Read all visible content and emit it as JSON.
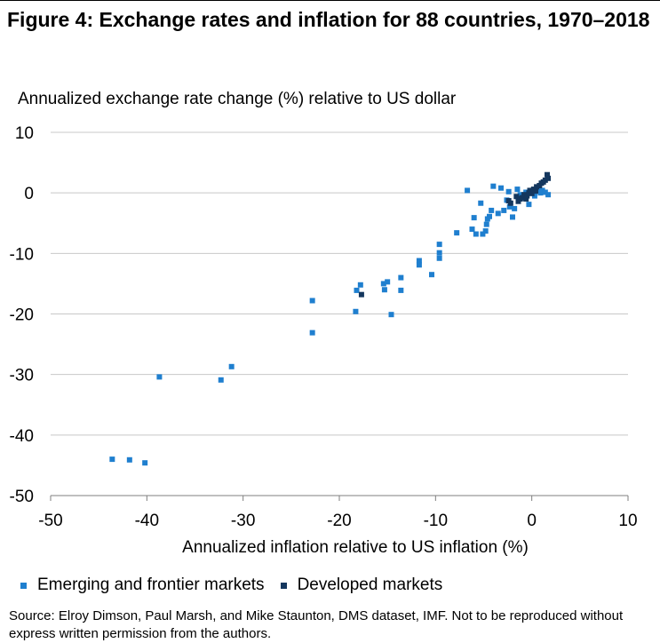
{
  "title": "Figure 4: Exchange rates and inflation for 88 countries, 1970–2018",
  "source": "Source:  Elroy Dimson, Paul Marsh, and Mike Staunton, DMS dataset, IMF. Not to be reproduced without express written permission from the authors.",
  "colors": {
    "emerging": "#1f7fcf",
    "developed": "#14375e",
    "grid": "#c8c8c8",
    "axis": "#7f7f7f"
  },
  "chart_data": {
    "type": "scatter",
    "xlabel": "Annualized inflation relative to US inflation (%)",
    "ylabel": "Annualized exchange rate change (%) relative to US dollar",
    "xlim": [
      -50,
      10
    ],
    "ylim": [
      -50,
      10
    ],
    "x_ticks": [
      -50,
      -40,
      -30,
      -20,
      -10,
      0,
      10
    ],
    "y_ticks": [
      10,
      0,
      -10,
      -20,
      -30,
      -40,
      -50
    ],
    "x_tick_labels": [
      "-50",
      "-40",
      "-30",
      "-20",
      "-10",
      "0",
      "10"
    ],
    "y_tick_labels": [
      "10",
      "0",
      "-10",
      "-20",
      "-30",
      "-40",
      "-50"
    ],
    "grid": "horizontal",
    "legend_position": "bottom",
    "series": [
      {
        "name": "Emerging and frontier markets",
        "color": "#1f7fcf",
        "points": [
          [
            -43.6,
            -44.0
          ],
          [
            -41.8,
            -44.1
          ],
          [
            -40.2,
            -44.6
          ],
          [
            -38.7,
            -30.4
          ],
          [
            -32.3,
            -30.9
          ],
          [
            -31.2,
            -28.7
          ],
          [
            -22.8,
            -17.8
          ],
          [
            -22.8,
            -23.1
          ],
          [
            -18.3,
            -19.6
          ],
          [
            -18.2,
            -16.1
          ],
          [
            -17.8,
            -15.2
          ],
          [
            -15.4,
            -15.0
          ],
          [
            -15.3,
            -16.0
          ],
          [
            -15.0,
            -14.7
          ],
          [
            -14.6,
            -20.1
          ],
          [
            -13.6,
            -14.0
          ],
          [
            -13.6,
            -16.1
          ],
          [
            -11.7,
            -11.2
          ],
          [
            -11.7,
            -11.9
          ],
          [
            -10.4,
            -13.5
          ],
          [
            -9.6,
            -8.5
          ],
          [
            -9.6,
            -9.9
          ],
          [
            -9.6,
            -10.8
          ],
          [
            -7.8,
            -6.6
          ],
          [
            -6.7,
            0.4
          ],
          [
            -6.2,
            -6.0
          ],
          [
            -6.0,
            -4.1
          ],
          [
            -5.8,
            -6.8
          ],
          [
            -5.3,
            -1.7
          ],
          [
            -5.1,
            -6.8
          ],
          [
            -4.8,
            -6.3
          ],
          [
            -4.7,
            -5.2
          ],
          [
            -4.6,
            -4.3
          ],
          [
            -4.4,
            -3.9
          ],
          [
            -4.2,
            -2.9
          ],
          [
            -4.0,
            1.1
          ],
          [
            -3.5,
            -3.4
          ],
          [
            -3.2,
            0.8
          ],
          [
            -2.9,
            -2.9
          ],
          [
            -2.6,
            -1.2
          ],
          [
            -2.4,
            0.2
          ],
          [
            -2.3,
            -2.3
          ],
          [
            -2.0,
            -4.0
          ],
          [
            -1.8,
            -2.6
          ],
          [
            -1.5,
            0.6
          ],
          [
            -1.2,
            -0.3
          ],
          [
            -0.9,
            -0.8
          ],
          [
            -0.6,
            0.1
          ],
          [
            -0.3,
            -1.9
          ],
          [
            -0.1,
            0.3
          ],
          [
            0.3,
            -0.5
          ],
          [
            0.6,
            0.3
          ],
          [
            0.9,
            0.0
          ],
          [
            1.1,
            0.4
          ],
          [
            1.4,
            0.1
          ],
          [
            1.7,
            -0.3
          ]
        ]
      },
      {
        "name": "Developed markets",
        "color": "#14375e",
        "points": [
          [
            -17.7,
            -16.8
          ],
          [
            -2.4,
            -1.3
          ],
          [
            -2.2,
            -1.7
          ],
          [
            -1.6,
            -0.6
          ],
          [
            -1.4,
            -1.4
          ],
          [
            -1.2,
            -1.0
          ],
          [
            -1.0,
            -0.8
          ],
          [
            -0.8,
            -0.3
          ],
          [
            -0.6,
            -1.0
          ],
          [
            -0.5,
            -0.5
          ],
          [
            -0.3,
            0.0
          ],
          [
            -0.2,
            0.4
          ],
          [
            0.0,
            -0.1
          ],
          [
            0.2,
            0.6
          ],
          [
            0.4,
            0.3
          ],
          [
            0.5,
            1.0
          ],
          [
            0.8,
            1.2
          ],
          [
            1.0,
            1.6
          ],
          [
            1.2,
            1.8
          ],
          [
            1.4,
            2.1
          ],
          [
            1.6,
            3.0
          ],
          [
            1.7,
            2.4
          ]
        ]
      }
    ]
  }
}
